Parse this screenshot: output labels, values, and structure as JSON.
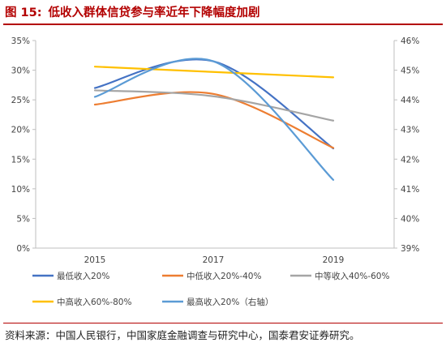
{
  "figure": {
    "number": "图 15:",
    "title": "低收入群体信贷参与率近年下降幅度加剧",
    "source": "资料来源：中国人民银行，中国家庭金融调查与研究中心，国泰君安证券研究。"
  },
  "chart_data": {
    "type": "line",
    "title": "低收入群体信贷参与率近年下降幅度加剧",
    "categories": [
      "2015",
      "2017",
      "2019"
    ],
    "y_left": {
      "ticks": [
        "0%",
        "5%",
        "10%",
        "15%",
        "20%",
        "25%",
        "30%",
        "35%"
      ],
      "range": [
        0,
        35
      ]
    },
    "y_right": {
      "ticks": [
        "39%",
        "40%",
        "41%",
        "42%",
        "43%",
        "44%",
        "45%",
        "46%"
      ],
      "range": [
        39,
        46
      ]
    },
    "grid": false,
    "legend_position": "bottom",
    "series": [
      {
        "name": "最低收入20%",
        "values": [
          27.0,
          31.5,
          16.8
        ],
        "axis": "left",
        "color": "#4472c4"
      },
      {
        "name": "中低收入20%-40%",
        "values": [
          24.2,
          26.0,
          16.9
        ],
        "axis": "left",
        "color": "#ed7d31"
      },
      {
        "name": "中等收入40%-60%",
        "values": [
          26.6,
          25.6,
          21.5
        ],
        "axis": "left",
        "color": "#a5a5a5"
      },
      {
        "name": "中高收入60%-80%",
        "values": [
          30.6,
          29.7,
          28.8
        ],
        "axis": "left",
        "color": "#ffc000"
      },
      {
        "name": "最高收入20%（右轴）",
        "values": [
          44.1,
          45.3,
          41.3
        ],
        "axis": "right",
        "color": "#5b9bd5"
      }
    ]
  }
}
